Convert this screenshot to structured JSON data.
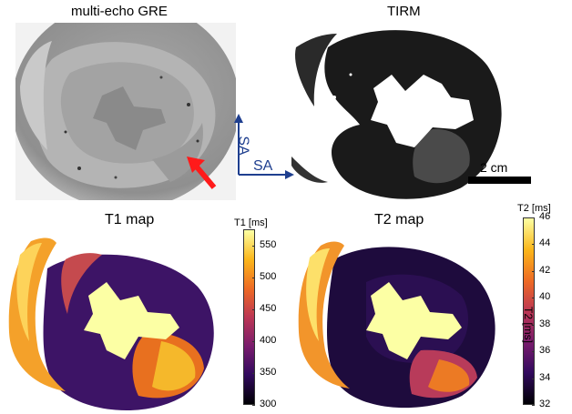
{
  "panels": {
    "gre": {
      "title": "multi-echo GRE"
    },
    "tirm": {
      "title": "TIRM"
    },
    "t1": {
      "title": "T1 map"
    },
    "t2": {
      "title": "T2 map"
    }
  },
  "orientation": {
    "vertical_label": "SA",
    "horizontal_label": "SA"
  },
  "scale_bar": {
    "label": "2 cm"
  },
  "t1_colorbar": {
    "label": "T1 [ms]",
    "ticks": [
      "550",
      "500",
      "450",
      "400",
      "350",
      "300"
    ],
    "range": [
      300,
      575
    ]
  },
  "t2_colorbar": {
    "label": "T2 [ms]",
    "axis_label": "T2 [ms]",
    "ticks": [
      "46",
      "44",
      "42",
      "40",
      "38",
      "36",
      "34",
      "32"
    ],
    "range": [
      32,
      46
    ]
  },
  "colors": {
    "arrow": "#ff1a1a",
    "orientation_arrows": "#1f3f8f",
    "colormap": [
      "#000004",
      "#320a5e",
      "#781c6d",
      "#bc3754",
      "#ed6925",
      "#fbb61a",
      "#fcffa4"
    ]
  }
}
